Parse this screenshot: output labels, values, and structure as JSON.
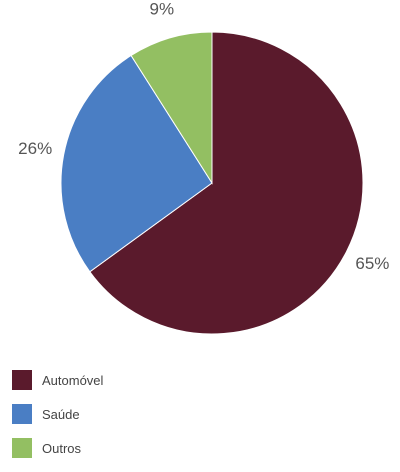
{
  "chart_data": {
    "type": "pie",
    "categories": [
      "Automóvel",
      "Saúde",
      "Outros"
    ],
    "values": [
      65,
      26,
      9
    ],
    "value_labels": [
      "65%",
      "26%",
      "9%"
    ],
    "colors": [
      "#5a1a2c",
      "#4a7ec4",
      "#93bf62"
    ],
    "start_angle": "12 o'clock",
    "direction": "clockwise",
    "legend_position": "bottom-left"
  }
}
